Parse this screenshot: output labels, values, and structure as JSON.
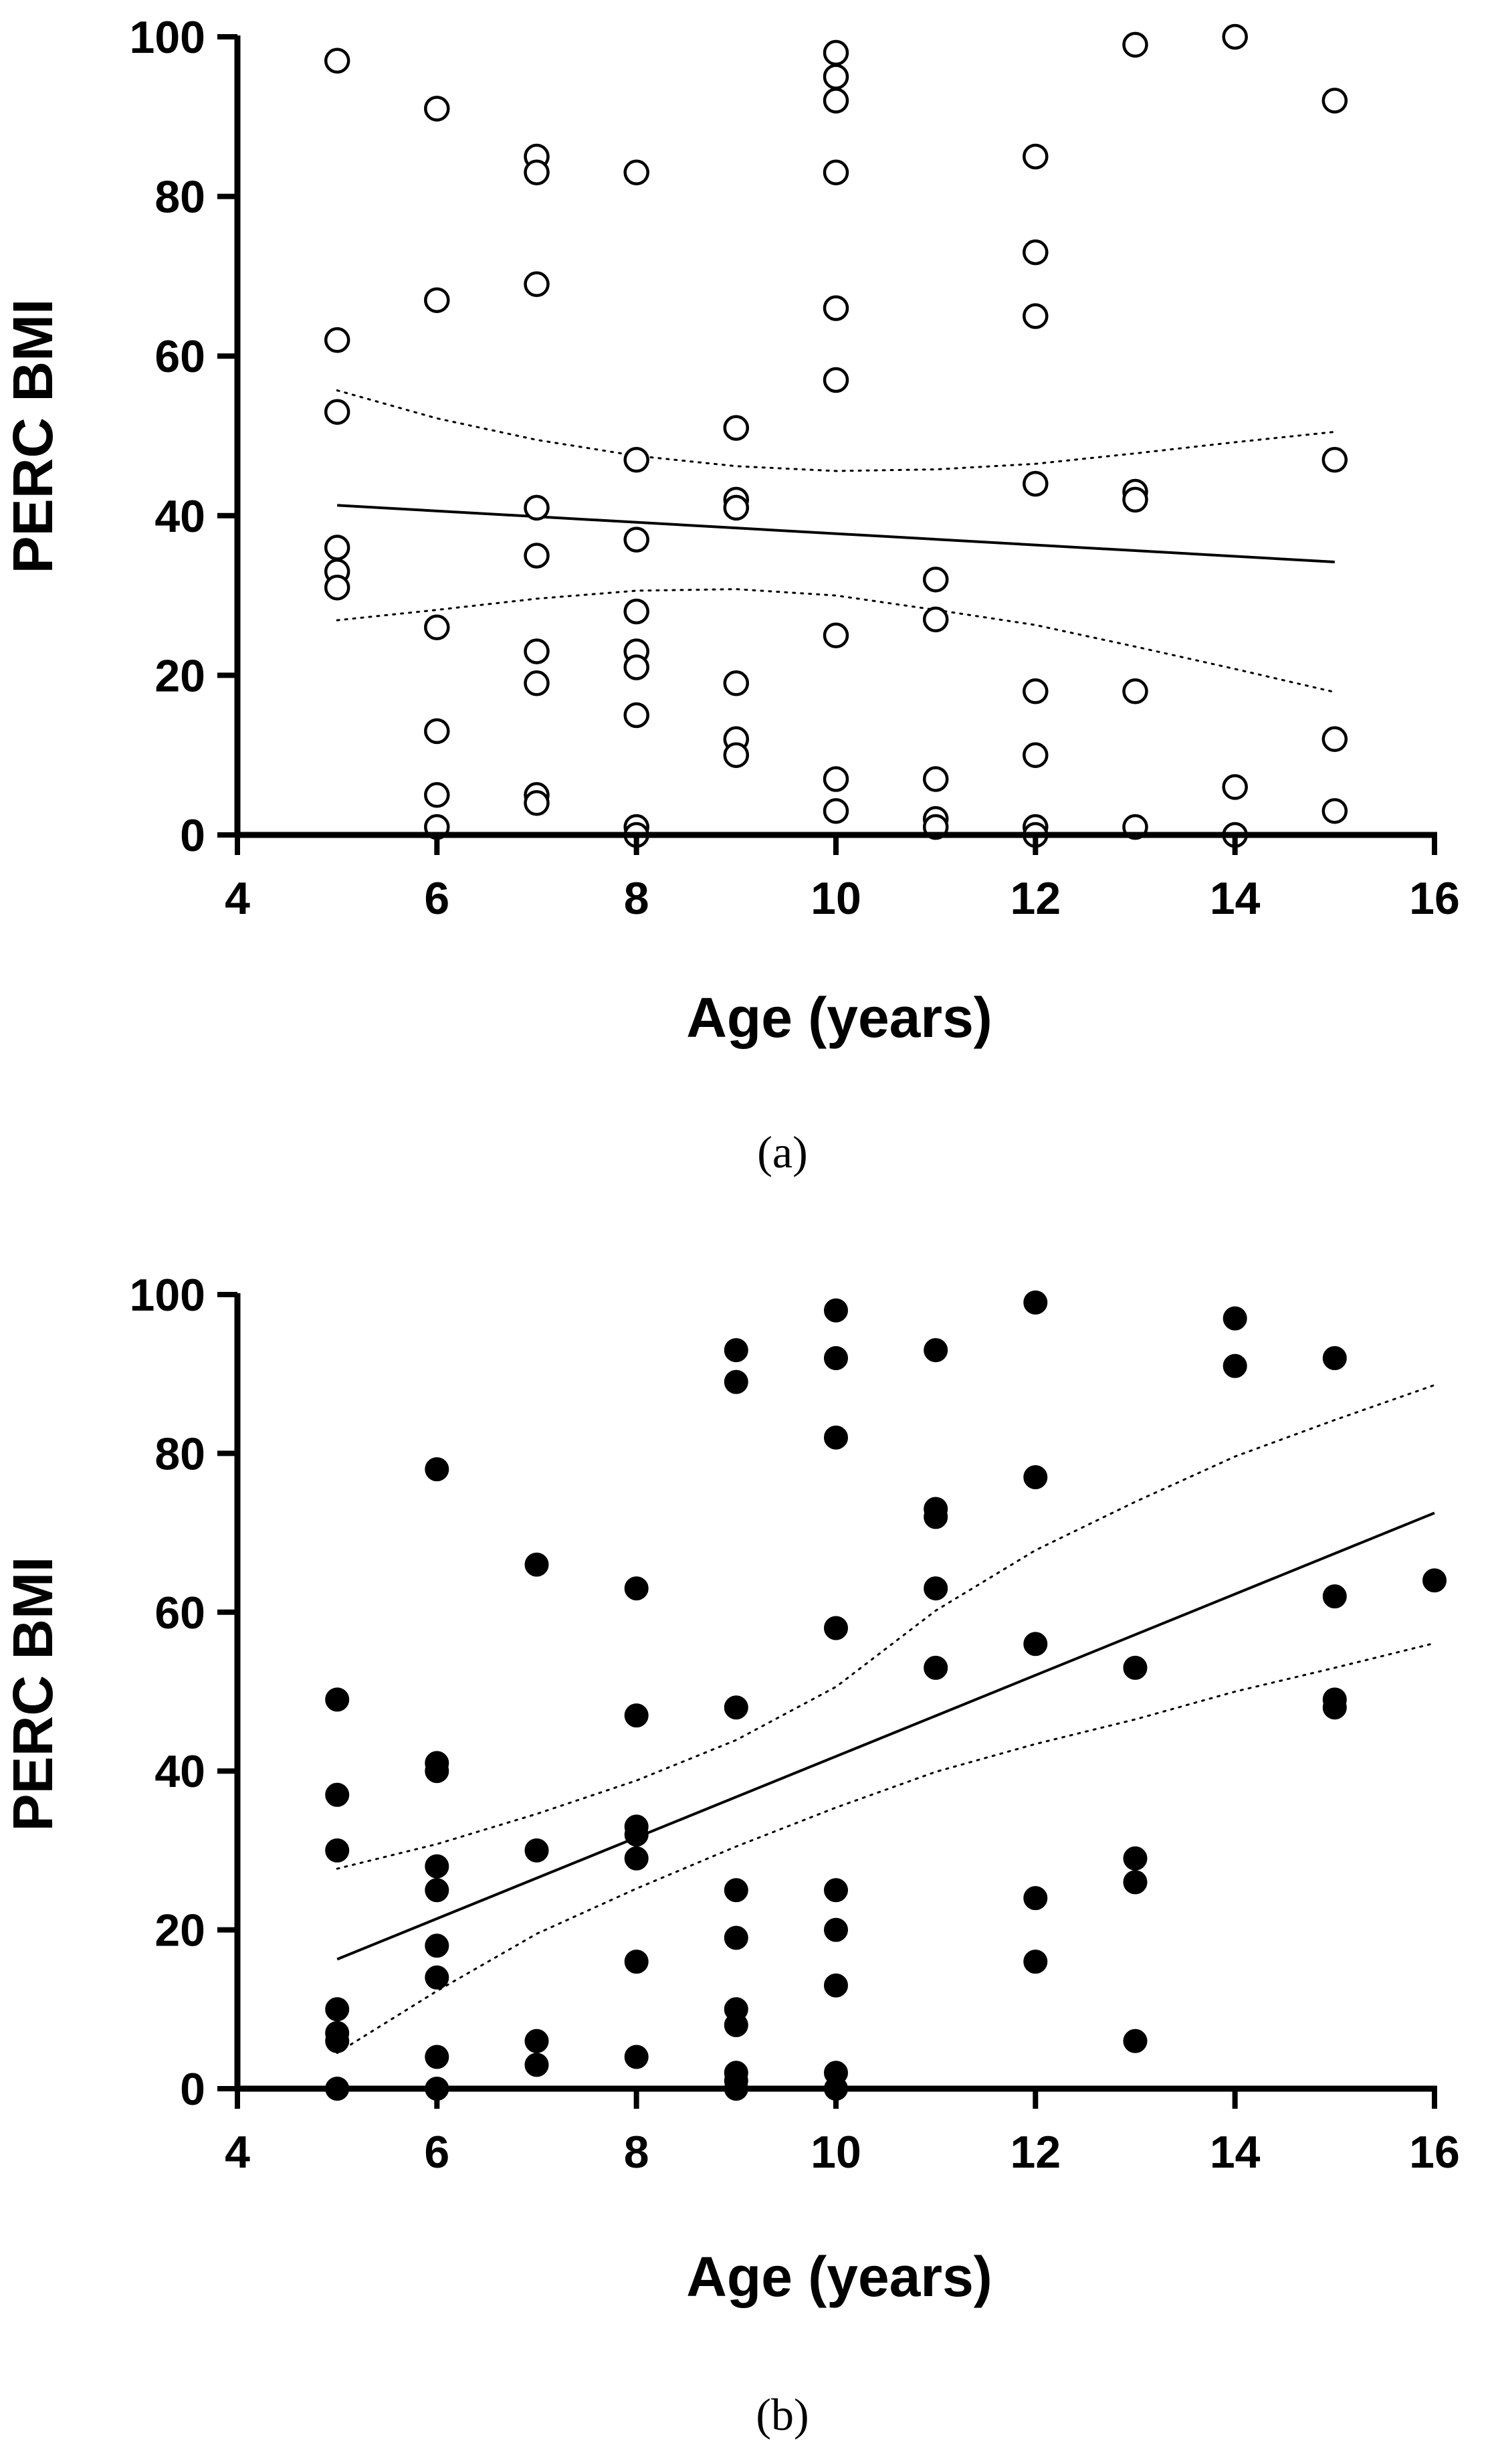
{
  "chart_data": [
    {
      "type": "scatter",
      "panel_label": "(a)",
      "xlabel": "Age (years)",
      "ylabel": "PERC BMI",
      "xlim": [
        4,
        16
      ],
      "ylim": [
        0,
        100
      ],
      "xticks": [
        4,
        6,
        8,
        10,
        12,
        14,
        16
      ],
      "yticks": [
        0,
        20,
        40,
        60,
        80,
        100
      ],
      "marker": "open-circle",
      "grid": false,
      "points": [
        [
          5,
          97
        ],
        [
          5,
          62
        ],
        [
          5,
          53
        ],
        [
          5,
          36
        ],
        [
          5,
          33
        ],
        [
          5,
          31
        ],
        [
          6,
          91
        ],
        [
          6,
          67
        ],
        [
          6,
          26
        ],
        [
          6,
          13
        ],
        [
          6,
          5
        ],
        [
          6,
          1
        ],
        [
          7,
          85
        ],
        [
          7,
          83
        ],
        [
          7,
          69
        ],
        [
          7,
          41
        ],
        [
          7,
          35
        ],
        [
          7,
          23
        ],
        [
          7,
          19
        ],
        [
          7,
          5
        ],
        [
          7,
          4
        ],
        [
          8,
          83
        ],
        [
          8,
          47
        ],
        [
          8,
          37
        ],
        [
          8,
          28
        ],
        [
          8,
          23
        ],
        [
          8,
          21
        ],
        [
          8,
          15
        ],
        [
          8,
          1
        ],
        [
          8,
          0
        ],
        [
          9,
          51
        ],
        [
          9,
          42
        ],
        [
          9,
          41
        ],
        [
          9,
          19
        ],
        [
          9,
          12
        ],
        [
          9,
          10
        ],
        [
          10,
          98
        ],
        [
          10,
          95
        ],
        [
          10,
          92
        ],
        [
          10,
          83
        ],
        [
          10,
          66
        ],
        [
          10,
          57
        ],
        [
          10,
          25
        ],
        [
          10,
          7
        ],
        [
          10,
          3
        ],
        [
          11,
          32
        ],
        [
          11,
          27
        ],
        [
          11,
          7
        ],
        [
          11,
          2
        ],
        [
          11,
          1
        ],
        [
          12,
          85
        ],
        [
          12,
          73
        ],
        [
          12,
          65
        ],
        [
          12,
          44
        ],
        [
          12,
          18
        ],
        [
          12,
          10
        ],
        [
          12,
          1
        ],
        [
          12,
          0
        ],
        [
          13,
          99
        ],
        [
          13,
          43
        ],
        [
          13,
          42
        ],
        [
          13,
          18
        ],
        [
          13,
          1
        ],
        [
          14,
          100
        ],
        [
          14,
          6
        ],
        [
          14,
          0
        ],
        [
          15,
          92
        ],
        [
          15,
          47
        ],
        [
          15,
          12
        ],
        [
          15,
          3
        ]
      ],
      "regression_line": {
        "x": [
          5,
          15
        ],
        "y": [
          41.3,
          34.2
        ]
      },
      "confidence_band": {
        "x": [
          5,
          6,
          7,
          8,
          9,
          10,
          11,
          12,
          13,
          14,
          15
        ],
        "upper": [
          55.7,
          52.2,
          49.5,
          47.5,
          46.2,
          45.6,
          45.8,
          46.5,
          47.8,
          49.2,
          50.5
        ],
        "lower": [
          26.9,
          28.2,
          29.6,
          30.6,
          30.8,
          30.0,
          28.2,
          26.3,
          23.6,
          20.8,
          17.9
        ]
      }
    },
    {
      "type": "scatter",
      "panel_label": "(b)",
      "xlabel": "Age (years)",
      "ylabel": "PERC BMI",
      "xlim": [
        4,
        16
      ],
      "ylim": [
        0,
        100
      ],
      "xticks": [
        4,
        6,
        8,
        10,
        12,
        14,
        16
      ],
      "yticks": [
        0,
        20,
        40,
        60,
        80,
        100
      ],
      "marker": "filled-circle",
      "grid": false,
      "points": [
        [
          5,
          49
        ],
        [
          5,
          37
        ],
        [
          5,
          30
        ],
        [
          5,
          10
        ],
        [
          5,
          7
        ],
        [
          5,
          6
        ],
        [
          5,
          0
        ],
        [
          6,
          78
        ],
        [
          6,
          41
        ],
        [
          6,
          40
        ],
        [
          6,
          28
        ],
        [
          6,
          25
        ],
        [
          6,
          18
        ],
        [
          6,
          14
        ],
        [
          6,
          4
        ],
        [
          6,
          0
        ],
        [
          7,
          66
        ],
        [
          7,
          30
        ],
        [
          7,
          6
        ],
        [
          7,
          3
        ],
        [
          8,
          63
        ],
        [
          8,
          47
        ],
        [
          8,
          33
        ],
        [
          8,
          32
        ],
        [
          8,
          29
        ],
        [
          8,
          16
        ],
        [
          8,
          4
        ],
        [
          9,
          93
        ],
        [
          9,
          89
        ],
        [
          9,
          48
        ],
        [
          9,
          25
        ],
        [
          9,
          19
        ],
        [
          9,
          10
        ],
        [
          9,
          8
        ],
        [
          9,
          2
        ],
        [
          9,
          1
        ],
        [
          9,
          0
        ],
        [
          10,
          98
        ],
        [
          10,
          92
        ],
        [
          10,
          82
        ],
        [
          10,
          58
        ],
        [
          10,
          25
        ],
        [
          10,
          20
        ],
        [
          10,
          13
        ],
        [
          10,
          2
        ],
        [
          10,
          0
        ],
        [
          11,
          93
        ],
        [
          11,
          73
        ],
        [
          11,
          72
        ],
        [
          11,
          63
        ],
        [
          11,
          53
        ],
        [
          12,
          99
        ],
        [
          12,
          77
        ],
        [
          12,
          56
        ],
        [
          12,
          24
        ],
        [
          12,
          16
        ],
        [
          13,
          53
        ],
        [
          13,
          29
        ],
        [
          13,
          26
        ],
        [
          13,
          6
        ],
        [
          14,
          97
        ],
        [
          14,
          91
        ],
        [
          15,
          92
        ],
        [
          15,
          62
        ],
        [
          15,
          49
        ],
        [
          15,
          48
        ],
        [
          16,
          64
        ]
      ],
      "regression_line": {
        "x": [
          5,
          16
        ],
        "y": [
          16.3,
          72.5
        ]
      },
      "confidence_band": {
        "x": [
          5,
          6,
          7,
          8,
          9,
          10,
          11,
          12,
          13,
          14,
          15,
          16
        ],
        "upper": [
          27.7,
          30.8,
          34.6,
          38.8,
          43.9,
          50.6,
          60.2,
          67.8,
          73.9,
          79.6,
          84.2,
          88.6
        ],
        "lower": [
          4.5,
          12.3,
          19.5,
          25.2,
          30.5,
          35.4,
          39.9,
          43.4,
          46.5,
          50.0,
          53.0,
          56.1
        ]
      }
    }
  ]
}
